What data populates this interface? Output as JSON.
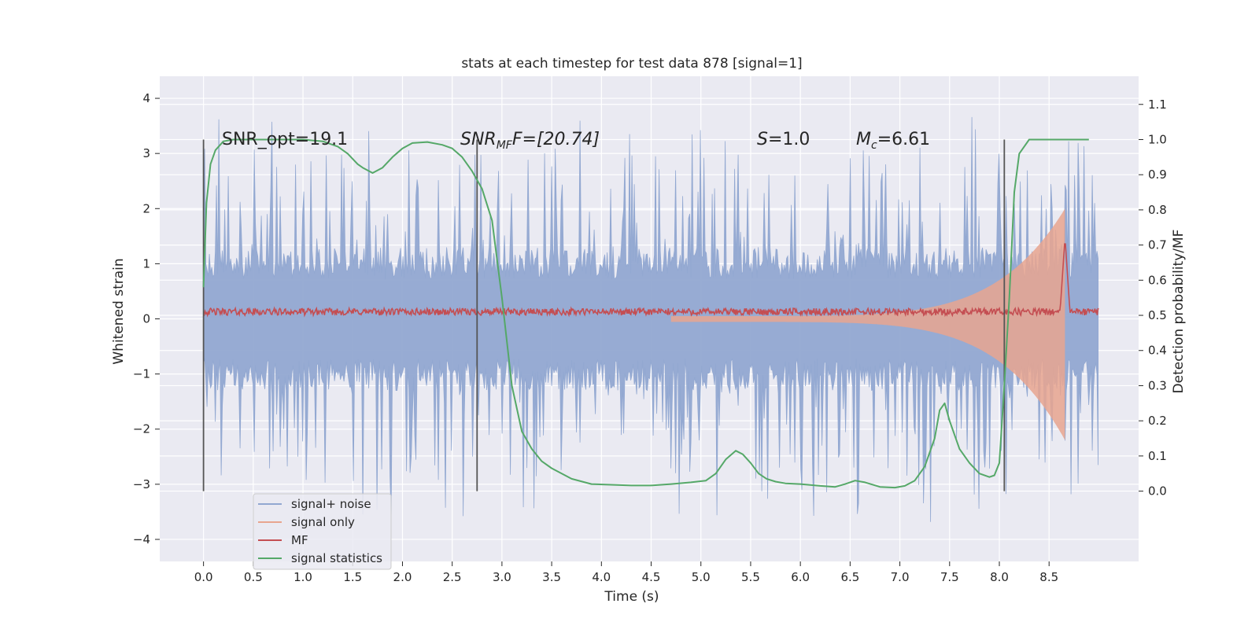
{
  "chart_data": {
    "type": "line",
    "title": "stats at each timestep for test data 878 [signal=1]",
    "xlabel": "Time (s)",
    "ylabel_left": "Whitened strain",
    "ylabel_right": "Detection probability/MF",
    "xlim": [
      -0.44,
      9.4
    ],
    "ylim_left": [
      -4.4,
      4.4
    ],
    "ylim_right": [
      -0.2,
      1.18
    ],
    "xticks": [
      "0.0",
      "0.5",
      "1.0",
      "1.5",
      "2.0",
      "2.5",
      "3.0",
      "3.5",
      "4.0",
      "4.5",
      "5.0",
      "5.5",
      "6.0",
      "6.5",
      "7.0",
      "7.5",
      "8.0",
      "8.5"
    ],
    "xtick_values": [
      0.0,
      0.5,
      1.0,
      1.5,
      2.0,
      2.5,
      3.0,
      3.5,
      4.0,
      4.5,
      5.0,
      5.5,
      6.0,
      6.5,
      7.0,
      7.5,
      8.0,
      8.5
    ],
    "yticks_left": [
      "4",
      "3",
      "2",
      "1",
      "0",
      "−1",
      "−2",
      "−3",
      "−4"
    ],
    "ytick_values_left": [
      4,
      3,
      2,
      1,
      0,
      -1,
      -2,
      -3,
      -4
    ],
    "yticks_right": [
      "1.1",
      "1.0",
      "0.9",
      "0.8",
      "0.7",
      "0.6",
      "0.5",
      "0.4",
      "0.3",
      "0.2",
      "0.1",
      "0.0"
    ],
    "ytick_values_right": [
      1.1,
      1.0,
      0.9,
      0.8,
      0.7,
      0.6,
      0.5,
      0.4,
      0.3,
      0.2,
      0.1,
      0.0
    ],
    "grid": true,
    "legend_position": "lower-left",
    "annotations": {
      "snr_opt": "SNR_opt=19.1",
      "snr_mf_prefix": "SNR",
      "snr_mf_sub": "MF",
      "snr_mf_suffix": "F=[20.74]",
      "s_label": "S",
      "s_value": "=1.0",
      "mc_label": "M",
      "mc_sub": "c",
      "mc_value": "=6.61"
    },
    "vertical_markers": [
      0.0,
      2.75,
      8.05
    ],
    "series": [
      {
        "name": "signal+ noise",
        "axis": "left",
        "color": "#92a8d1",
        "x_range": [
          0.0,
          9.0
        ],
        "envelope_typical": 1.3,
        "envelope_peak": 3.7
      },
      {
        "name": "signal only",
        "axis": "left",
        "color": "#e8a58f",
        "x_range": [
          4.7,
          8.66
        ],
        "amplitude_start": 0.05,
        "amplitude_peak": 2.0,
        "peak_time": 8.66
      },
      {
        "name": "MF",
        "axis": "right",
        "color": "#c44e52",
        "x_range": [
          0.0,
          9.0
        ],
        "level": 0.51,
        "peak_time": 8.66,
        "peak_value": 0.72
      },
      {
        "name": "signal statistics",
        "axis": "right",
        "color": "#55a868",
        "x": [
          0.0,
          0.03,
          0.07,
          0.12,
          0.2,
          0.3,
          0.5,
          0.8,
          1.0,
          1.2,
          1.35,
          1.45,
          1.55,
          1.6,
          1.7,
          1.8,
          1.9,
          2.0,
          2.1,
          2.25,
          2.4,
          2.5,
          2.6,
          2.7,
          2.8,
          2.9,
          3.0,
          3.1,
          3.2,
          3.3,
          3.4,
          3.5,
          3.7,
          3.9,
          4.1,
          4.3,
          4.5,
          4.7,
          4.9,
          5.05,
          5.15,
          5.25,
          5.35,
          5.42,
          5.5,
          5.58,
          5.66,
          5.75,
          5.85,
          6.0,
          6.2,
          6.35,
          6.45,
          6.55,
          6.65,
          6.8,
          6.95,
          7.05,
          7.15,
          7.25,
          7.35,
          7.4,
          7.45,
          7.5,
          7.6,
          7.7,
          7.8,
          7.9,
          7.95,
          8.0,
          8.05,
          8.1,
          8.15,
          8.2,
          8.3,
          8.5,
          8.7,
          8.9
        ],
        "values": [
          0.58,
          0.82,
          0.93,
          0.97,
          0.995,
          1.0,
          1.0,
          1.0,
          1.0,
          0.995,
          0.98,
          0.96,
          0.93,
          0.92,
          0.905,
          0.92,
          0.95,
          0.975,
          0.99,
          0.993,
          0.985,
          0.975,
          0.95,
          0.91,
          0.86,
          0.77,
          0.55,
          0.3,
          0.17,
          0.12,
          0.085,
          0.065,
          0.035,
          0.02,
          0.018,
          0.016,
          0.016,
          0.02,
          0.025,
          0.03,
          0.05,
          0.09,
          0.115,
          0.105,
          0.08,
          0.05,
          0.035,
          0.027,
          0.022,
          0.02,
          0.015,
          0.012,
          0.02,
          0.03,
          0.025,
          0.012,
          0.01,
          0.015,
          0.03,
          0.07,
          0.15,
          0.23,
          0.25,
          0.2,
          0.12,
          0.08,
          0.05,
          0.04,
          0.045,
          0.08,
          0.3,
          0.55,
          0.85,
          0.96,
          1.0,
          1.0,
          1.0,
          1.0
        ]
      }
    ]
  }
}
